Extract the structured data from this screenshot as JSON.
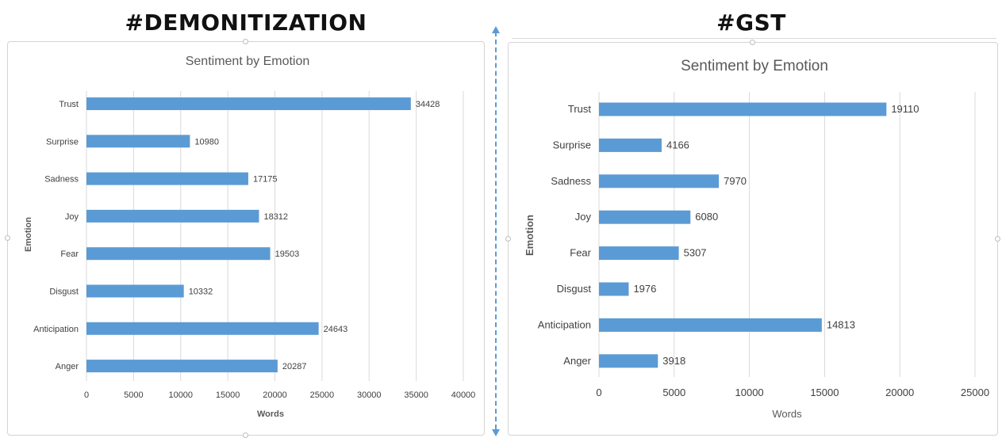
{
  "headings": {
    "left": "#DEMONITIZATION",
    "right": "#GST"
  },
  "colors": {
    "bar": "#5b9bd5",
    "grid": "#d9d9d9",
    "text": "#404040",
    "title": "#595959",
    "divider": "#5b9bd5"
  },
  "chart_data": [
    {
      "type": "bar",
      "orientation": "horizontal",
      "title": "Sentiment by Emotion",
      "xlabel": "Words",
      "ylabel": "Emotion",
      "categories": [
        "Trust",
        "Surprise",
        "Sadness",
        "Joy",
        "Fear",
        "Disgust",
        "Anticipation",
        "Anger"
      ],
      "values": [
        34428,
        10980,
        17175,
        18312,
        19503,
        10332,
        24643,
        20287
      ],
      "xlim": [
        0,
        40000
      ],
      "xticks": [
        0,
        5000,
        10000,
        15000,
        20000,
        25000,
        30000,
        35000,
        40000
      ],
      "grid": "vertical",
      "data_labels": true
    },
    {
      "type": "bar",
      "orientation": "horizontal",
      "title": "Sentiment by Emotion",
      "xlabel": "Words",
      "ylabel": "Emotion",
      "categories": [
        "Trust",
        "Surprise",
        "Sadness",
        "Joy",
        "Fear",
        "Disgust",
        "Anticipation",
        "Anger"
      ],
      "values": [
        19110,
        4166,
        7970,
        6080,
        5307,
        1976,
        14813,
        3918
      ],
      "xlim": [
        0,
        25000
      ],
      "xticks": [
        0,
        5000,
        10000,
        15000,
        20000,
        25000
      ],
      "grid": "vertical",
      "data_labels": true
    }
  ]
}
